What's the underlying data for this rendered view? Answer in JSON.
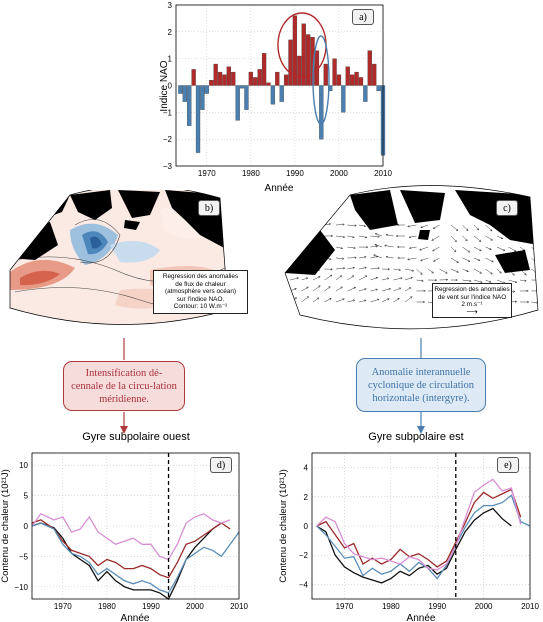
{
  "panel_a": {
    "tag": "a)",
    "ylabel": "Indice NAO",
    "xlabel": "Année",
    "yticks": [
      "3",
      "2",
      "1",
      "0",
      "−1",
      "−2",
      "−3"
    ],
    "xticks": [
      "1970",
      "1980",
      "1990",
      "2000",
      "2010"
    ]
  },
  "panel_b": {
    "tag": "b)",
    "legend": [
      "Regression des anomalies",
      "de flux de chaleur",
      "(atmosphère vers océan)",
      "sur l'indice NAO.",
      "Contour: 10 W.m⁻²"
    ]
  },
  "panel_c": {
    "tag": "c)",
    "legend": [
      "Regression des anomalies",
      "de vent sur l'indice NAO",
      "2  m.s⁻¹"
    ]
  },
  "box_red": {
    "text": "Intensification dé-cennale de la circu-lation méridienne."
  },
  "box_blue": {
    "text": "Anomalie interannuelle cyclonique de circulation horizontale (intergyre)."
  },
  "panel_d": {
    "tag": "d)",
    "title": "Gyre subpolaire ouest",
    "ylabel": "Contenu de chaleur (10²¹J)",
    "xlabel": "Année",
    "yticks": [
      "10",
      "5",
      "0",
      "−5",
      "−10"
    ],
    "xticks": [
      "1970",
      "1980",
      "1990",
      "2000",
      "2010"
    ]
  },
  "panel_e": {
    "tag": "e)",
    "title": "Gyre subpolaire est",
    "ylabel": "Contenu de chaleur (10²¹J)",
    "xlabel": "Année",
    "yticks": [
      "4",
      "2",
      "0",
      "−2",
      "−4"
    ],
    "xticks": [
      "1970",
      "1980",
      "1990",
      "2000",
      "2010"
    ]
  },
  "colors": {
    "positive": "#b02a2a",
    "negative": "#4a7fb0",
    "black": "#111111",
    "red_line": "#9b2a2a",
    "blue_line": "#5a8db8",
    "pink_line": "#d88fd4",
    "box_red_border": "#b03a3a",
    "box_blue_border": "#4a7eb0"
  },
  "chart_data": [
    {
      "type": "bar",
      "panel": "a",
      "xlim": [
        1963,
        2010
      ],
      "ylim": [
        -3,
        3
      ],
      "grid": true,
      "x": [
        1964,
        1965,
        1966,
        1967,
        1968,
        1969,
        1970,
        1971,
        1972,
        1973,
        1974,
        1975,
        1976,
        1977,
        1978,
        1979,
        1980,
        1981,
        1982,
        1983,
        1984,
        1985,
        1986,
        1987,
        1988,
        1989,
        1990,
        1991,
        1992,
        1993,
        1994,
        1995,
        1996,
        1997,
        1998,
        1999,
        2000,
        2001,
        2002,
        2003,
        2004,
        2005,
        2006,
        2007,
        2008,
        2009,
        2010
      ],
      "values": [
        -0.3,
        -0.6,
        -1.5,
        0.6,
        -2.5,
        -0.9,
        -0.3,
        0.2,
        0.8,
        0.5,
        0.4,
        0.7,
        0.5,
        -1.3,
        -0.1,
        -0.9,
        0.5,
        0.3,
        0.6,
        1.2,
        0.1,
        -0.7,
        0.5,
        -0.6,
        0.4,
        1.7,
        2.6,
        1.1,
        2.3,
        1.9,
        1.8,
        1.3,
        -2.0,
        0.8,
        -0.2,
        1.0,
        0.4,
        -1.0,
        0.7,
        0.4,
        0.5,
        0.3,
        -0.6,
        1.3,
        0.8,
        -0.2,
        -2.6
      ]
    },
    {
      "type": "line",
      "panel": "d",
      "xlim": [
        1963,
        2010
      ],
      "ylim": [
        -12,
        12
      ],
      "vline": 1994,
      "grid": true,
      "series": [
        {
          "color": "black",
          "x": [
            1963,
            1965,
            1968,
            1970,
            1972,
            1974,
            1976,
            1978,
            1980,
            1982,
            1984,
            1986,
            1988,
            1990,
            1992,
            1994,
            1996,
            1998,
            2000,
            2002,
            2004,
            2006
          ],
          "y": [
            0,
            0.5,
            -0.3,
            -2,
            -4.5,
            -5.5,
            -6.5,
            -9,
            -7.5,
            -9,
            -10,
            -10.5,
            -10.5,
            -10.5,
            -11,
            -12,
            -9,
            -5.5,
            -3.5,
            -2,
            -0.5,
            0.5
          ]
        },
        {
          "color": "red",
          "x": [
            1963,
            1965,
            1968,
            1970,
            1972,
            1974,
            1976,
            1978,
            1980,
            1982,
            1984,
            1986,
            1988,
            1990,
            1992,
            1994,
            1996,
            1998,
            2000,
            2002,
            2004,
            2006,
            2008
          ],
          "y": [
            0.5,
            1,
            -0.5,
            -2.5,
            -4,
            -4.5,
            -5,
            -6.5,
            -5.5,
            -6,
            -7,
            -7,
            -6.5,
            -7,
            -8,
            -8.5,
            -6,
            -3,
            -2.5,
            -1.5,
            -0.5,
            0.5,
            -0.5
          ]
        },
        {
          "color": "blue",
          "x": [
            1963,
            1965,
            1968,
            1970,
            1972,
            1974,
            1976,
            1978,
            1980,
            1982,
            1984,
            1986,
            1988,
            1990,
            1992,
            1994,
            1996,
            1998,
            2000,
            2002,
            2004,
            2006,
            2008,
            2010
          ],
          "y": [
            0,
            0.5,
            -0.5,
            -3,
            -4.5,
            -5,
            -6,
            -8,
            -7,
            -8,
            -9,
            -9.5,
            -9,
            -9.5,
            -10.5,
            -11,
            -8.5,
            -5.5,
            -4.5,
            -3.5,
            -4,
            -5,
            -3,
            -1
          ]
        },
        {
          "color": "pink",
          "x": [
            1963,
            1965,
            1968,
            1970,
            1972,
            1974,
            1976,
            1978,
            1980,
            1982,
            1984,
            1986,
            1988,
            1990,
            1992,
            1994,
            1996,
            1998,
            2000,
            2002,
            2004,
            2006,
            2008
          ],
          "y": [
            0,
            2,
            1,
            1.5,
            -1,
            -0.5,
            1.5,
            -1,
            -2,
            -3,
            -2.5,
            -2,
            -3,
            -3,
            -5,
            -5.5,
            -3,
            0.5,
            1.5,
            2,
            1,
            0.5,
            1
          ]
        }
      ]
    },
    {
      "type": "line",
      "panel": "e",
      "xlim": [
        1963,
        2010
      ],
      "ylim": [
        -5,
        5
      ],
      "vline": 1994,
      "grid": true,
      "series": [
        {
          "color": "black",
          "x": [
            1964,
            1966,
            1968,
            1970,
            1972,
            1974,
            1976,
            1978,
            1980,
            1982,
            1984,
            1986,
            1988,
            1990,
            1992,
            1994,
            1996,
            1998,
            2000,
            2002,
            2004,
            2006
          ],
          "y": [
            0,
            -0.4,
            -2,
            -2.8,
            -3.2,
            -3.5,
            -3.7,
            -3.9,
            -3.6,
            -3.1,
            -3.4,
            -2.9,
            -2.7,
            -3.3,
            -2.9,
            -1.6,
            -0.4,
            0.4,
            0.9,
            1.2,
            0.5,
            0
          ]
        },
        {
          "color": "red",
          "x": [
            1964,
            1966,
            1968,
            1970,
            1972,
            1974,
            1976,
            1978,
            1980,
            1982,
            1984,
            1986,
            1988,
            1990,
            1992,
            1994,
            1996,
            1998,
            2000,
            2002,
            2004,
            2006,
            2008
          ],
          "y": [
            0,
            0.3,
            -0.6,
            -1.5,
            -1.2,
            -2.6,
            -2.2,
            -2.6,
            -2.3,
            -1.6,
            -2.1,
            -1.9,
            -2.3,
            -2.8,
            -2.4,
            -1.1,
            0.2,
            1.6,
            2.3,
            1.9,
            2.2,
            2.5,
            0.6
          ]
        },
        {
          "color": "blue",
          "x": [
            1964,
            1966,
            1968,
            1970,
            1972,
            1974,
            1976,
            1978,
            1980,
            1982,
            1984,
            1986,
            1988,
            1990,
            1992,
            1994,
            1996,
            1998,
            2000,
            2002,
            2004,
            2006,
            2008,
            2010
          ],
          "y": [
            0,
            -0.6,
            -1.4,
            -2.2,
            -2.1,
            -3.4,
            -2.9,
            -3.3,
            -3.1,
            -2.6,
            -3.1,
            -2.5,
            -2.9,
            -3.6,
            -2.7,
            -1.3,
            -0.1,
            0.9,
            1.4,
            1.4,
            1.6,
            2.1,
            0.3,
            0
          ]
        },
        {
          "color": "pink",
          "x": [
            1964,
            1966,
            1968,
            1970,
            1972,
            1974,
            1976,
            1978,
            1980,
            1982,
            1984,
            1986,
            1988,
            1990,
            1992,
            1994,
            1996,
            1998,
            2000,
            2002,
            2004,
            2006,
            2008
          ],
          "y": [
            0,
            0.6,
            0.3,
            -1.2,
            -1.9,
            -2.1,
            -2.3,
            -2.2,
            -2.4,
            -2.6,
            -2.1,
            -2.3,
            -2.9,
            -3,
            -2.6,
            -1.4,
            0.5,
            2.3,
            2.8,
            3.2,
            2.4,
            2.6,
            0.1
          ]
        }
      ]
    }
  ]
}
